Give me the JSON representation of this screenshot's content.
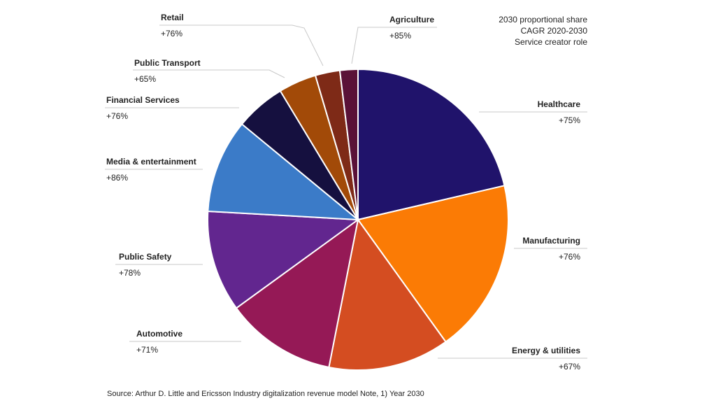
{
  "chart_data": {
    "type": "pie",
    "title": "",
    "notes": [
      "2030 proportional share",
      "CAGR 2020-2030",
      "Service creator role"
    ],
    "slices": [
      {
        "name": "Healthcare",
        "share": 21.0,
        "cagr": "+75%",
        "color": "#20136b"
      },
      {
        "name": "Manufacturing",
        "share": 18.4,
        "cagr": "+76%",
        "color": "#fb7b05"
      },
      {
        "name": "Energy & utilities",
        "share": 12.8,
        "cagr": "+67%",
        "color": "#d44d21"
      },
      {
        "name": "Automotive",
        "share": 11.7,
        "cagr": "+71%",
        "color": "#951956"
      },
      {
        "name": "Public Safety",
        "share": 10.7,
        "cagr": "+78%",
        "color": "#62268f"
      },
      {
        "name": "Media & entertainment",
        "share": 9.9,
        "cagr": "+86%",
        "color": "#3b7bc8"
      },
      {
        "name": "Financial Services",
        "share": 5.3,
        "cagr": "+76%",
        "color": "#15103f"
      },
      {
        "name": "Public Transport",
        "share": 4.0,
        "cagr": "+65%",
        "color": "#a24a08"
      },
      {
        "name": "Retail",
        "share": 2.6,
        "cagr": "+76%",
        "color": "#7e2a17"
      },
      {
        "name": "Agriculture",
        "share": 1.9,
        "cagr": "+85%",
        "color": "#5a1238"
      }
    ]
  },
  "source": "Source: Arthur D. Little and Ericsson Industry digitalization revenue model Note, 1) Year 2030"
}
